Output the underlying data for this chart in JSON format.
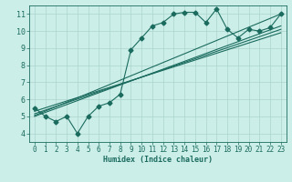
{
  "title": "",
  "xlabel": "Humidex (Indice chaleur)",
  "ylabel": "",
  "bg_color": "#cceee8",
  "line_color": "#1a6b5e",
  "grid_color": "#aad4cc",
  "xlim": [
    -0.5,
    23.5
  ],
  "ylim": [
    3.5,
    11.5
  ],
  "xticks": [
    0,
    1,
    2,
    3,
    4,
    5,
    6,
    7,
    8,
    9,
    10,
    11,
    12,
    13,
    14,
    15,
    16,
    17,
    18,
    19,
    20,
    21,
    22,
    23
  ],
  "yticks": [
    4,
    5,
    6,
    7,
    8,
    9,
    10,
    11
  ],
  "main_line_x": [
    0,
    1,
    2,
    3,
    4,
    5,
    6,
    7,
    8,
    9,
    10,
    11,
    12,
    13,
    14,
    15,
    16,
    17,
    18,
    19,
    20,
    21,
    22,
    23
  ],
  "main_line_y": [
    5.5,
    5.0,
    4.7,
    5.0,
    4.0,
    5.0,
    5.6,
    5.8,
    6.3,
    8.9,
    9.6,
    10.3,
    10.5,
    11.0,
    11.1,
    11.1,
    10.5,
    11.3,
    10.1,
    9.6,
    10.1,
    10.0,
    10.2,
    11.0
  ],
  "line2_y_start": 5.0,
  "line2_y_end": 10.3,
  "line3_y_start": 5.15,
  "line3_y_end": 10.1,
  "line4_y_start": 5.3,
  "line4_y_end": 9.9,
  "line5_y_start": 5.05,
  "line5_y_end": 11.0,
  "marker_size": 2.5,
  "line_width": 0.8,
  "xlabel_fontsize": 6.0,
  "tick_fontsize": 5.5
}
